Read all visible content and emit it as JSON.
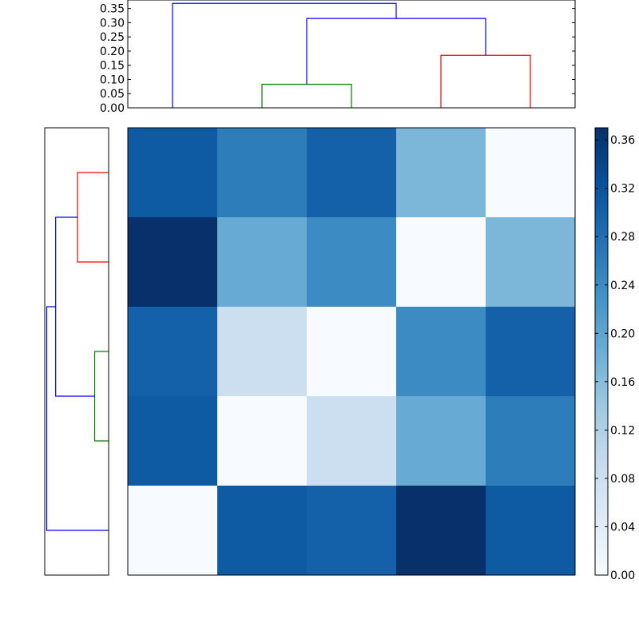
{
  "chart_data": [
    {
      "type": "heatmap",
      "title": "",
      "xlabel": "",
      "ylabel": "",
      "colormap": "Blues",
      "value_range": [
        0.0,
        0.37
      ],
      "matrix": [
        [
          0.31,
          0.26,
          0.3,
          0.17,
          0.0
        ],
        [
          0.37,
          0.19,
          0.24,
          0.0,
          0.17
        ],
        [
          0.3,
          0.08,
          0.0,
          0.24,
          0.3
        ],
        [
          0.31,
          0.0,
          0.08,
          0.19,
          0.26
        ],
        [
          0.0,
          0.31,
          0.3,
          0.37,
          0.31
        ]
      ],
      "colorbar": {
        "ticks": [
          0.0,
          0.04,
          0.08,
          0.12,
          0.16,
          0.2,
          0.24,
          0.28,
          0.32,
          0.36
        ],
        "tick_labels": [
          "0.00",
          "0.04",
          "0.08",
          "0.12",
          "0.16",
          "0.20",
          "0.24",
          "0.28",
          "0.32",
          "0.36"
        ],
        "range": [
          0.0,
          0.37
        ]
      }
    },
    {
      "type": "dendrogram",
      "orientation": "top",
      "ylim": [
        0.0,
        0.38
      ],
      "tick_values": [
        0.0,
        0.05,
        0.1,
        0.15,
        0.2,
        0.25,
        0.3,
        0.35
      ],
      "tick_labels": [
        "0.00",
        "0.05",
        "0.10",
        "0.15",
        "0.20",
        "0.25",
        "0.30",
        "0.35"
      ],
      "leaves": 5,
      "links": [
        {
          "left": 1,
          "right": 2,
          "height": 0.083,
          "color": "#008000"
        },
        {
          "left": 3,
          "right": 4,
          "height": 0.185,
          "color": "#ff0000"
        },
        {
          "left": 1.5,
          "right": 3.5,
          "height": 0.315,
          "color": "#0000ff",
          "left_base": 0.083,
          "right_base": 0.185
        },
        {
          "left": 0,
          "right": 2.5,
          "height": 0.368,
          "color": "#0000ff",
          "left_base": 0.0,
          "right_base": 0.315
        }
      ]
    },
    {
      "type": "dendrogram",
      "orientation": "left",
      "leaves": 5,
      "links": [
        {
          "left": 0,
          "right": 1,
          "height": 0.185,
          "color": "#ff0000"
        },
        {
          "left": 2,
          "right": 3,
          "height": 0.083,
          "color": "#008000"
        },
        {
          "left": 0.5,
          "right": 2.5,
          "height": 0.315,
          "color": "#0000ff",
          "left_base": 0.185,
          "right_base": 0.083
        },
        {
          "left": 1.5,
          "right": 4,
          "height": 0.368,
          "color": "#0000ff",
          "left_base": 0.315,
          "right_base": 0.0
        }
      ]
    }
  ]
}
